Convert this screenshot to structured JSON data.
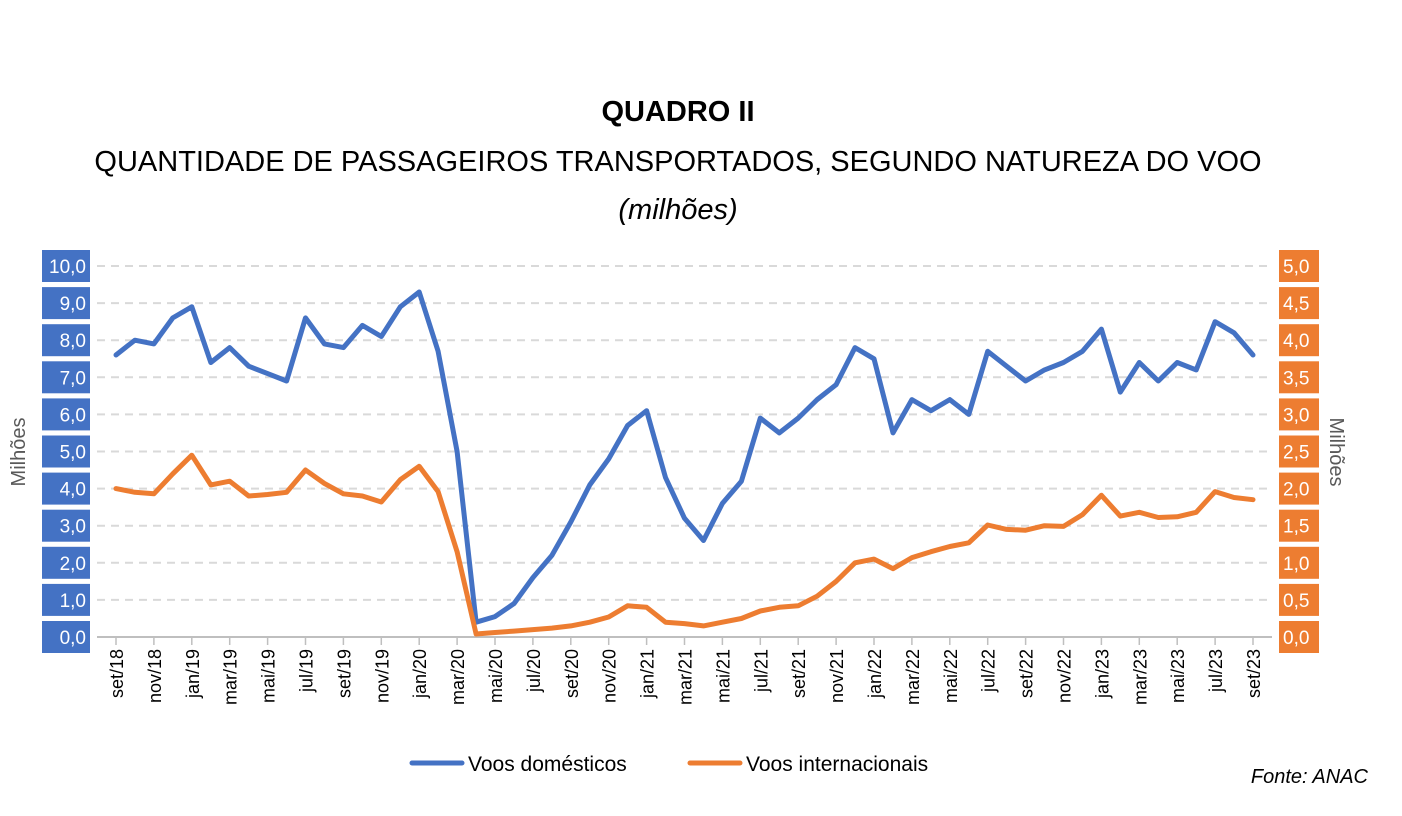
{
  "title": "QUADRO II",
  "subtitle": "QUANTIDADE DE PASSAGEIROS TRANSPORTADOS, SEGUNDO NATUREZA DO VOO",
  "unit_note": "(milhões)",
  "source": "Fonte: ANAC",
  "chart_data": {
    "type": "line",
    "title": "QUADRO II",
    "ylabel": "Milhões",
    "y2label": "Milhões",
    "ylim": [
      0,
      10
    ],
    "y2lim": [
      0,
      5
    ],
    "y_ticks": [
      "0,0",
      "1,0",
      "2,0",
      "3,0",
      "4,0",
      "5,0",
      "6,0",
      "7,0",
      "8,0",
      "9,0",
      "10,0"
    ],
    "y2_ticks": [
      "0,0",
      "0,5",
      "1,0",
      "1,5",
      "2,0",
      "2,5",
      "3,0",
      "3,5",
      "4,0",
      "4,5",
      "5,0"
    ],
    "grid": true,
    "legend": "bottom",
    "x_tick_labels": [
      "set/18",
      "nov/18",
      "jan/19",
      "mar/19",
      "mai/19",
      "jul/19",
      "set/19",
      "nov/19",
      "jan/20",
      "mar/20",
      "mai/20",
      "jul/20",
      "set/20",
      "nov/20",
      "jan/21",
      "mar/21",
      "mai/21",
      "jul/21",
      "set/21",
      "nov/21",
      "jan/22",
      "mar/22",
      "mai/22",
      "jul/22",
      "set/22",
      "nov/22",
      "jan/23",
      "mar/23",
      "mai/23",
      "jul/23",
      "set/23"
    ],
    "x": [
      "set/18",
      "out/18",
      "nov/18",
      "dez/18",
      "jan/19",
      "fev/19",
      "mar/19",
      "abr/19",
      "mai/19",
      "jun/19",
      "jul/19",
      "ago/19",
      "set/19",
      "out/19",
      "nov/19",
      "dez/19",
      "jan/20",
      "fev/20",
      "mar/20",
      "abr/20",
      "mai/20",
      "jun/20",
      "jul/20",
      "ago/20",
      "set/20",
      "out/20",
      "nov/20",
      "dez/20",
      "jan/21",
      "fev/21",
      "mar/21",
      "abr/21",
      "mai/21",
      "jun/21",
      "jul/21",
      "ago/21",
      "set/21",
      "out/21",
      "nov/21",
      "dez/21",
      "jan/22",
      "fev/22",
      "mar/22",
      "abr/22",
      "mai/22",
      "jun/22",
      "jul/22",
      "ago/22",
      "set/22",
      "out/22",
      "nov/22",
      "dez/22",
      "jan/23",
      "fev/23",
      "mar/23",
      "abr/23",
      "mai/23",
      "jun/23",
      "jul/23",
      "ago/23",
      "set/23"
    ],
    "series": [
      {
        "name": "Voos domésticos",
        "axis": "left",
        "color": "#4472C4",
        "values": [
          7.6,
          8.0,
          7.9,
          8.6,
          8.9,
          7.4,
          7.8,
          7.3,
          7.1,
          6.9,
          8.6,
          7.9,
          7.8,
          8.4,
          8.1,
          8.9,
          9.3,
          7.7,
          5.0,
          0.4,
          0.55,
          0.9,
          1.6,
          2.2,
          3.1,
          4.1,
          4.8,
          5.7,
          6.1,
          4.3,
          3.2,
          2.6,
          3.6,
          4.2,
          5.9,
          5.5,
          5.9,
          6.4,
          6.8,
          7.8,
          7.5,
          5.5,
          6.4,
          6.1,
          6.4,
          6.0,
          7.7,
          7.3,
          6.9,
          7.2,
          7.4,
          7.7,
          8.3,
          6.6,
          7.4,
          6.9,
          7.4,
          7.2,
          8.5,
          8.2,
          7.6
        ]
      },
      {
        "name": "Voos internacionais",
        "axis": "right",
        "color": "#ED7D31",
        "values": [
          2.0,
          1.95,
          1.93,
          2.2,
          2.45,
          2.05,
          2.1,
          1.9,
          1.92,
          1.95,
          2.25,
          2.07,
          1.93,
          1.9,
          1.82,
          2.12,
          2.3,
          1.96,
          1.15,
          0.04,
          0.06,
          0.08,
          0.1,
          0.12,
          0.15,
          0.2,
          0.27,
          0.42,
          0.4,
          0.2,
          0.18,
          0.15,
          0.2,
          0.25,
          0.35,
          0.4,
          0.42,
          0.55,
          0.75,
          1.0,
          1.05,
          0.92,
          1.07,
          1.15,
          1.22,
          1.27,
          1.51,
          1.45,
          1.44,
          1.5,
          1.49,
          1.65,
          1.91,
          1.63,
          1.68,
          1.61,
          1.62,
          1.68,
          1.96,
          1.88,
          1.85
        ]
      }
    ]
  }
}
